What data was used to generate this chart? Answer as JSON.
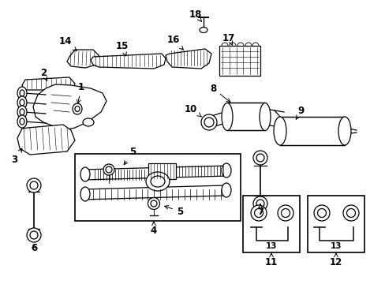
{
  "bg_color": "#ffffff",
  "line_color": "#1a1a1a",
  "fig_width": 4.89,
  "fig_height": 3.6,
  "dpi": 100,
  "xlim": [
    0,
    489
  ],
  "ylim": [
    0,
    360
  ]
}
